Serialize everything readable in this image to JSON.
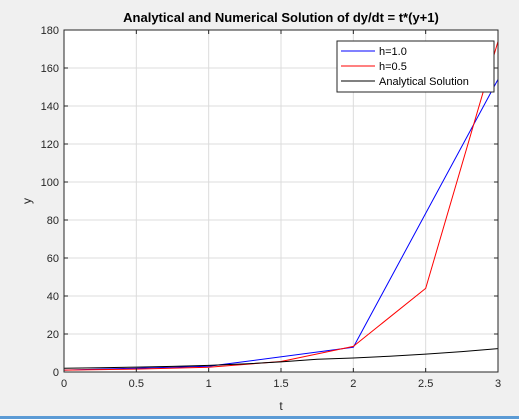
{
  "chart_data": {
    "type": "line",
    "title": "Analytical and Numerical Solution of dy/dt = t*(y+1)",
    "xlabel": "t",
    "ylabel": "y",
    "xlim": [
      0,
      3
    ],
    "ylim": [
      0,
      180
    ],
    "xticks": [
      0,
      0.5,
      1,
      1.5,
      2,
      2.5,
      3
    ],
    "xtick_labels": [
      "0",
      "0.5",
      "1",
      "1.5",
      "2",
      "2.5",
      "3"
    ],
    "yticks": [
      0,
      20,
      40,
      60,
      80,
      100,
      120,
      140,
      160,
      180
    ],
    "ytick_labels": [
      "0",
      "20",
      "40",
      "60",
      "80",
      "100",
      "120",
      "140",
      "160",
      "180"
    ],
    "grid": true,
    "legend_position": "top-right",
    "series": [
      {
        "name": "h=1.0",
        "color": "#0000ff",
        "x": [
          0,
          1,
          2,
          3
        ],
        "y": [
          1,
          3,
          13,
          154
        ]
      },
      {
        "name": "h=0.5",
        "color": "#ff0000",
        "x": [
          0,
          0.5,
          1,
          1.5,
          2,
          2.5,
          3
        ],
        "y": [
          1,
          1.5,
          2.5,
          5.5,
          13.5,
          44,
          174
        ]
      },
      {
        "name": "Analytical Solution",
        "color": "#000000",
        "x": [
          0,
          0.25,
          0.5,
          0.75,
          1,
          1.25,
          1.5,
          1.75,
          2,
          2.25,
          2.5,
          2.75,
          3
        ],
        "y": [
          2,
          2.25,
          2.55,
          2.93,
          3.5,
          4.25,
          5.3,
          6.7,
          7.4,
          8.3,
          9.4,
          10.7,
          12.3
        ]
      }
    ]
  }
}
